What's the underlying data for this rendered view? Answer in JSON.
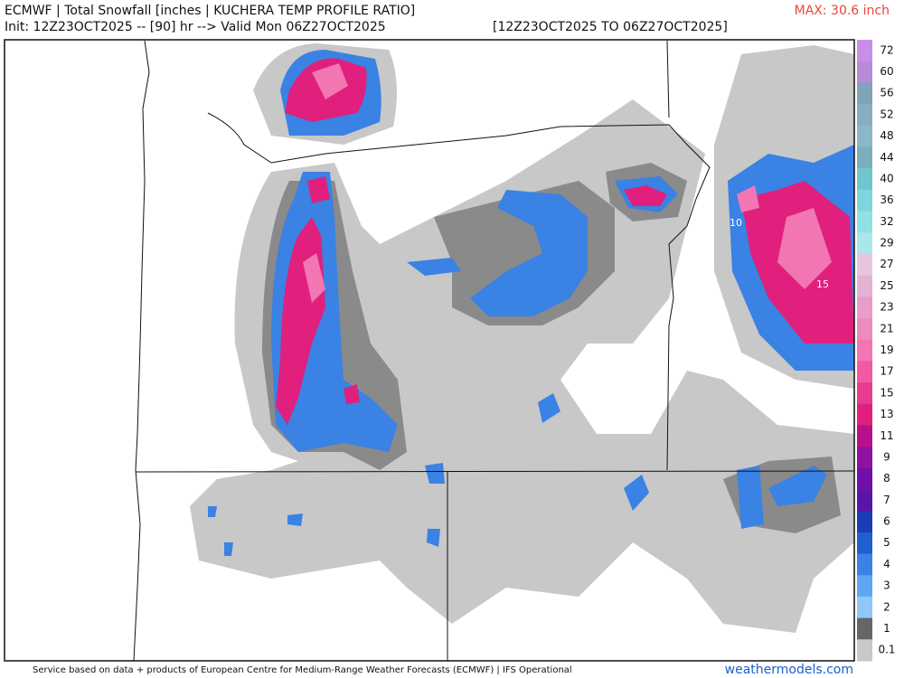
{
  "header": {
    "line1": "ECMWF | Total Snowfall [inches | KUCHERA TEMP PROFILE RATIO]",
    "line2": "Init: 12Z23OCT2025 -- [90] hr --> Valid Mon 06Z27OCT2025",
    "range": "[12Z23OCT2025 TO 06Z27OCT2025]",
    "max": "MAX: 30.6 inch"
  },
  "colorbar": [
    {
      "label": "72",
      "color": "#c88fe8"
    },
    {
      "label": "60",
      "color": "#b88ad8"
    },
    {
      "label": "56",
      "color": "#7fa3b8"
    },
    {
      "label": "52",
      "color": "#86aebf"
    },
    {
      "label": "48",
      "color": "#8bb8c6"
    },
    {
      "label": "44",
      "color": "#79b0bc"
    },
    {
      "label": "40",
      "color": "#6fc6cf"
    },
    {
      "label": "36",
      "color": "#7fd5dc"
    },
    {
      "label": "32",
      "color": "#90e0e4"
    },
    {
      "label": "29",
      "color": "#a8e8ea"
    },
    {
      "label": "27",
      "color": "#e6c6dc"
    },
    {
      "label": "25",
      "color": "#e4b2d2"
    },
    {
      "label": "23",
      "color": "#e69ec8"
    },
    {
      "label": "21",
      "color": "#ec8cbe"
    },
    {
      "label": "19",
      "color": "#f276b2"
    },
    {
      "label": "17",
      "color": "#f05aa4"
    },
    {
      "label": "15",
      "color": "#e83c90"
    },
    {
      "label": "13",
      "color": "#e0207c"
    },
    {
      "label": "11",
      "color": "#b8108a"
    },
    {
      "label": "9",
      "color": "#9010a0"
    },
    {
      "label": "8",
      "color": "#7010a8"
    },
    {
      "label": "7",
      "color": "#5a14a8"
    },
    {
      "label": "6",
      "color": "#1a3cb4"
    },
    {
      "label": "5",
      "color": "#1f5fd0"
    },
    {
      "label": "4",
      "color": "#3a82e4"
    },
    {
      "label": "3",
      "color": "#5ea6f2"
    },
    {
      "label": "2",
      "color": "#8ec8fa"
    },
    {
      "label": "1",
      "color": "#666666"
    },
    {
      "label": "0.1",
      "color": "#c8c8c8"
    }
  ],
  "map_labels": [
    "10",
    "15"
  ],
  "footer": {
    "credit": "Service based on data + products of European Centre for Medium-Range Weather Forecasts (ECMWF) | IFS Operational",
    "brand": "weathermodels.com"
  }
}
